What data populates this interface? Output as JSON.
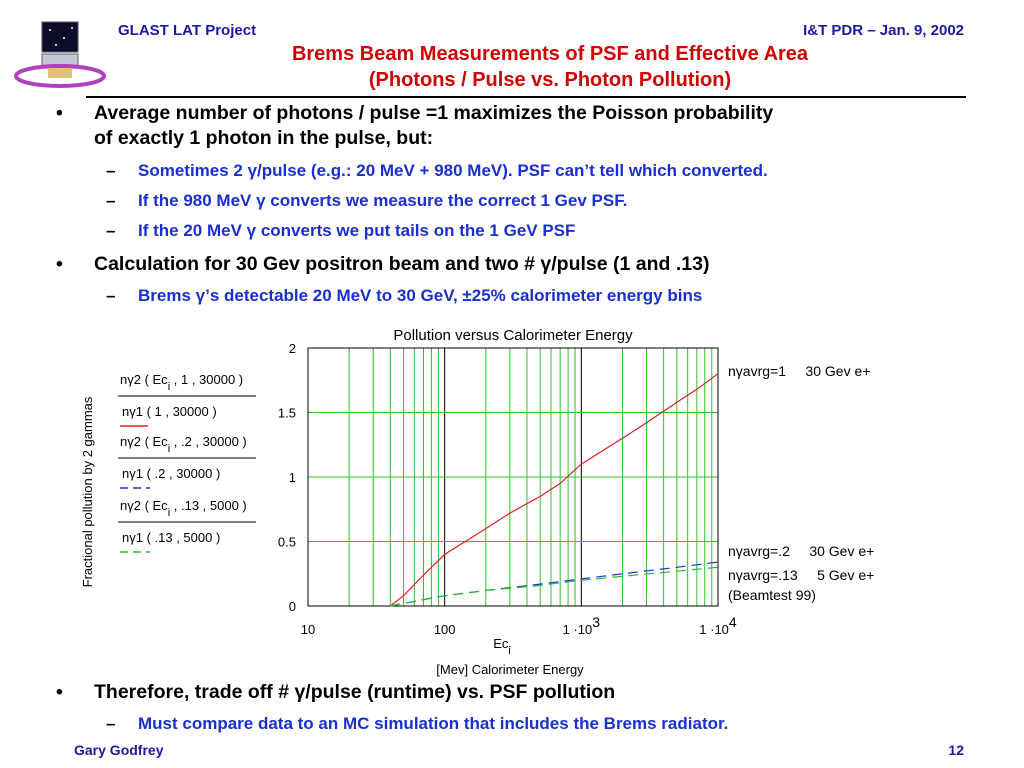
{
  "header": {
    "left": "GLAST LAT Project",
    "right": "I&T  PDR – Jan. 9, 2002",
    "title_line1": "Brems Beam Measurements of PSF and Effective Area",
    "title_line2": "(Photons / Pulse  vs.  Photon Pollution)"
  },
  "bullets": [
    {
      "text": "Average number of photons / pulse =1 maximizes the Poisson probability",
      "text2": "of exactly 1 photon in the pulse, but:",
      "subs": [
        "Sometimes 2 γ/pulse (e.g.: 20 MeV + 980 MeV).  PSF can’t tell which converted.",
        "If the 980 MeV γ converts we measure the correct 1 Gev PSF.",
        "If the 20 MeV γ converts we put tails on the 1 GeV PSF"
      ]
    },
    {
      "text": "Calculation for 30 Gev positron beam and two # γ/pulse (1 and .13)",
      "subs": [
        "Brems γ’s detectable 20 MeV to 30 GeV,   ±25% calorimeter energy bins"
      ]
    },
    {
      "text": "Therefore, trade off  # γ/pulse (runtime) vs. PSF pollution",
      "subs": [
        "Must compare data to an MC simulation that includes the Brems radiator."
      ]
    }
  ],
  "chart_data": {
    "type": "line",
    "title": "Pollution versus Calorimeter Energy",
    "xlabel": "Ec",
    "xlabel_sub": "i",
    "xlabel2": "[Mev] Calorimeter Energy",
    "ylabel": "Fractional pollution by 2 gammas",
    "x_scale": "log",
    "xlim": [
      10,
      10000
    ],
    "ylim": [
      0,
      2
    ],
    "x_tick_labels": [
      "10",
      "100",
      "1 ·10",
      "1 ·10"
    ],
    "x_tick_exponents": [
      "",
      "",
      "3",
      "4"
    ],
    "y_tick_labels": [
      "0",
      "0.5",
      "1",
      "1.5",
      "2"
    ],
    "grid": true,
    "series": [
      {
        "name": "nγavrg=1     30 Gev e+",
        "color": "#e02020",
        "style": "solid",
        "legend_num": "nγ2 ( Ec",
        "legend_num_sub": "i",
        "legend_num_tail": " , 1 , 30000 )",
        "legend_den": "nγ1 ( 1 , 30000 )",
        "x": [
          40,
          50,
          70,
          100,
          200,
          300,
          500,
          700,
          1000,
          2000,
          3000,
          5000,
          7000,
          10000
        ],
        "y": [
          0.0,
          0.08,
          0.24,
          0.4,
          0.6,
          0.72,
          0.85,
          0.95,
          1.1,
          1.3,
          1.42,
          1.58,
          1.68,
          1.8
        ]
      },
      {
        "name": "nγavrg=.2     30 Gev e+",
        "color": "#2030d0",
        "style": "dashed",
        "legend_num": "nγ2 ( Ec",
        "legend_num_sub": "i",
        "legend_num_tail": " , .2 , 30000 )",
        "legend_den": "nγ1 ( .2 , 30000 )",
        "x": [
          40,
          50,
          70,
          100,
          200,
          500,
          1000,
          2000,
          5000,
          10000
        ],
        "y": [
          0.0,
          0.02,
          0.05,
          0.08,
          0.12,
          0.17,
          0.21,
          0.25,
          0.3,
          0.34
        ]
      },
      {
        "name": "nγavrg=.13     5 Gev e+",
        "color": "#20c020",
        "style": "dashed",
        "legend_num": "nγ2 ( Ec",
        "legend_num_sub": "i",
        "legend_num_tail": " , .13 , 5000 )",
        "legend_den": "nγ1 ( .13 , 5000 )",
        "x": [
          40,
          50,
          70,
          100,
          200,
          500,
          1000,
          2000,
          5000,
          10000
        ],
        "y": [
          0.0,
          0.02,
          0.05,
          0.08,
          0.12,
          0.16,
          0.2,
          0.23,
          0.27,
          0.3
        ]
      }
    ],
    "annotation_beamtest": "(Beamtest 99)"
  },
  "footer": {
    "left": "Gary Godfrey",
    "right": "12"
  }
}
